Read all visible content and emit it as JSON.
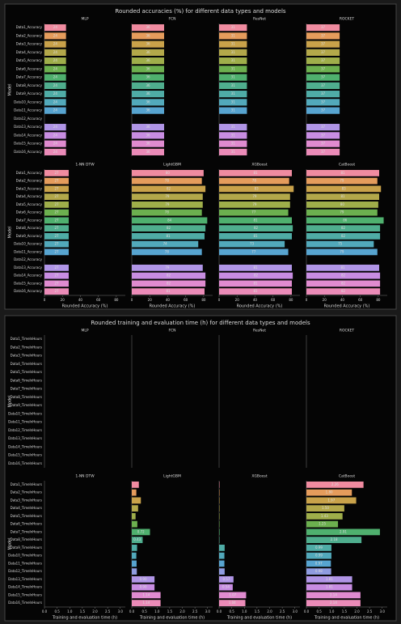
{
  "chart_data": [
    {
      "type": "bar",
      "orientation": "horizontal",
      "title": "Rounded accuracies (%) for different data types and models",
      "ylabel": "Model",
      "xlabel": "Rounded Accuracy (%)",
      "categories": [
        "Data1_Accuracy",
        "Data2_Accuracy",
        "Data3_Accuracy",
        "Data4_Accuracy",
        "Data5_Accuracy",
        "Data6_Accuracy",
        "Data7_Accuracy",
        "Data8_Accuracy",
        "Data9_Accuracy",
        "Data10_Accuracy",
        "Data11_Accuracy",
        "Data12_Accuracy",
        "Data13_Accuracy",
        "Data14_Accuracy",
        "Data15_Accuracy",
        "Data16_Accuracy"
      ],
      "colors": [
        "#f08ba0",
        "#e59c5c",
        "#c9a24a",
        "#b3a84a",
        "#9fae4a",
        "#6cb04f",
        "#4fb06e",
        "#4fae8e",
        "#4faca6",
        "#52a9bb",
        "#57a4d0",
        "#8f9ce0",
        "#b095e6",
        "#c88de2",
        "#e08bd0",
        "#eb8bb8"
      ],
      "xlim": [
        0,
        90
      ],
      "xticks": [
        0,
        20,
        40,
        60,
        80
      ],
      "subplots": [
        {
          "title": "MLP",
          "values": [
            24,
            24,
            24,
            24,
            24,
            24,
            24,
            24,
            24,
            24,
            24,
            null,
            24,
            24,
            24,
            24
          ]
        },
        {
          "title": "FCN",
          "values": [
            36,
            36,
            36,
            36,
            36,
            36,
            36,
            36,
            36,
            36,
            36,
            null,
            36,
            36,
            36,
            36
          ]
        },
        {
          "title": "ResNet",
          "values": [
            31,
            31,
            31,
            31,
            31,
            31,
            31,
            31,
            31,
            31,
            31,
            null,
            31,
            31,
            31,
            31
          ]
        },
        {
          "title": "ROCKET",
          "values": [
            37,
            37,
            37,
            37,
            37,
            37,
            37,
            37,
            37,
            37,
            37,
            null,
            37,
            37,
            37,
            37
          ]
        },
        {
          "title": "1-NN DTW",
          "values": [
            27,
            27,
            27,
            27,
            27,
            27,
            27,
            27,
            27,
            27,
            27,
            null,
            27,
            27,
            27,
            27
          ]
        },
        {
          "title": "LightGBM",
          "values": [
            80,
            78,
            82,
            79,
            79,
            78,
            84,
            82,
            81,
            74,
            78,
            null,
            79,
            82,
            82,
            81
          ]
        },
        {
          "title": "XGBoost",
          "values": [
            81,
            78,
            83,
            79,
            79,
            77,
            81,
            82,
            81,
            73,
            77,
            null,
            81,
            82,
            81,
            81
          ]
        },
        {
          "title": "CatBoost",
          "values": [
            81,
            79,
            83,
            81,
            80,
            79,
            86,
            82,
            82,
            75,
            79,
            null,
            81,
            82,
            82,
            82
          ]
        }
      ]
    },
    {
      "type": "bar",
      "orientation": "horizontal",
      "title": "Rounded training and evaluation time (h) for different data types and models",
      "ylabel": "Model",
      "xlabel": "Training and evaluation time (h)",
      "categories": [
        "Data1_TimeInHours",
        "Data2_TimeInHours",
        "Data3_TimeInHours",
        "Data4_TimeInHours",
        "Data5_TimeInHours",
        "Data6_TimeInHours",
        "Data7_TimeInHours",
        "Data8_TimeInHours",
        "Data9_TimeInHours",
        "Data10_TimeInHours",
        "Data11_TimeInHours",
        "Data12_TimeInHours",
        "Data13_TimeInHours",
        "Data14_TimeInHours",
        "Data15_TimeInHours",
        "Data16_TimeInHours"
      ],
      "colors": [
        "#f08ba0",
        "#e59c5c",
        "#c9a24a",
        "#b3a84a",
        "#9fae4a",
        "#6cb04f",
        "#4fb06e",
        "#4fae8e",
        "#4faca6",
        "#52a9bb",
        "#57a4d0",
        "#8f9ce0",
        "#b095e6",
        "#c88de2",
        "#e08bd0",
        "#eb8bb8"
      ],
      "xlim": [
        0,
        3.2
      ],
      "xticks": [
        {
          "value": 0,
          "label": "0.0"
        },
        0.5,
        {
          "value": 1,
          "label": "1.0"
        },
        1.5,
        {
          "value": 2,
          "label": "2.0"
        },
        2.5,
        {
          "value": 3,
          "label": "3.0"
        }
      ],
      "subplots": [
        {
          "title": "MLP",
          "values": [
            null,
            null,
            null,
            null,
            null,
            null,
            null,
            null,
            null,
            null,
            null,
            null,
            null,
            null,
            null,
            null
          ]
        },
        {
          "title": "FCN",
          "values": [
            null,
            null,
            null,
            null,
            null,
            null,
            null,
            null,
            null,
            null,
            null,
            null,
            null,
            null,
            null,
            null
          ]
        },
        {
          "title": "ResNet",
          "values": [
            null,
            null,
            null,
            null,
            null,
            null,
            null,
            null,
            null,
            null,
            null,
            null,
            null,
            null,
            null,
            null
          ]
        },
        {
          "title": "ROCKET",
          "values": [
            null,
            null,
            null,
            null,
            null,
            null,
            null,
            null,
            null,
            null,
            null,
            null,
            null,
            null,
            null,
            null
          ]
        },
        {
          "title": "1-NN DTW",
          "values": [
            null,
            null,
            null,
            null,
            null,
            null,
            null,
            null,
            null,
            null,
            null,
            null,
            null,
            null,
            null,
            null
          ]
        },
        {
          "title": "LightGBM",
          "values": [
            0.28,
            0.18,
            0.36,
            0.25,
            0.15,
            0.22,
            0.72,
            0.43,
            0.21,
            0.18,
            0.19,
            0.2,
            0.9,
            0.9,
            1.14,
            1.14
          ],
          "value_labels": [
            null,
            null,
            null,
            null,
            null,
            null,
            "0.72",
            "0.43",
            null,
            null,
            null,
            null,
            "0.90",
            "0.90",
            "1.14",
            "1.14"
          ]
        },
        {
          "title": "XGBoost",
          "values": [
            0.01,
            0.01,
            0.01,
            0.01,
            0.01,
            0.01,
            0.02,
            0.01,
            0.22,
            0.21,
            0.21,
            0.22,
            0.57,
            0.54,
            1.07,
            1.04
          ],
          "value_labels": [
            null,
            null,
            null,
            null,
            null,
            null,
            null,
            null,
            null,
            null,
            null,
            null,
            "0.57",
            "0.54",
            "1.07",
            "1.04"
          ]
        },
        {
          "title": "CatBoost",
          "values": [
            2.26,
            1.8,
            1.97,
            1.5,
            1.43,
            1.25,
            2.91,
            2.18,
            0.99,
            0.99,
            0.97,
            0.98,
            1.81,
            1.81,
            2.14,
            2.14
          ],
          "value_labels": [
            "2.26",
            "1.80",
            "1.97",
            "1.50",
            "1.43",
            "1.25",
            "2.91",
            "2.18",
            "0.99",
            "0.99",
            "0.97",
            "0.98",
            "1.81",
            "1.81",
            "2.14",
            "2.14"
          ]
        }
      ]
    }
  ]
}
